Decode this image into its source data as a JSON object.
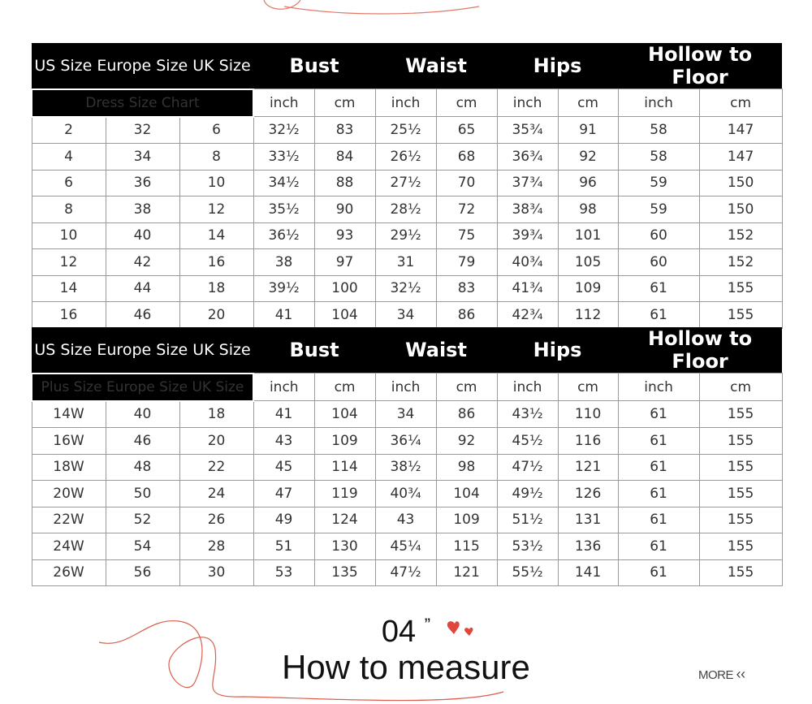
{
  "table1": {
    "header": [
      "US Size Europe Size UK Size",
      "Bust",
      "Waist",
      "Hips",
      "Hollow to Floor"
    ],
    "label": "Dress Size Chart",
    "units": [
      "inch",
      "cm",
      "inch",
      "cm",
      "inch",
      "cm",
      "inch",
      "cm"
    ],
    "rows": [
      [
        "2",
        "32",
        "6",
        "32½",
        "83",
        "25½",
        "65",
        "35¾",
        "91",
        "58",
        "147"
      ],
      [
        "4",
        "34",
        "8",
        "33½",
        "84",
        "26½",
        "68",
        "36¾",
        "92",
        "58",
        "147"
      ],
      [
        "6",
        "36",
        "10",
        "34½",
        "88",
        "27½",
        "70",
        "37¾",
        "96",
        "59",
        "150"
      ],
      [
        "8",
        "38",
        "12",
        "35½",
        "90",
        "28½",
        "72",
        "38¾",
        "98",
        "59",
        "150"
      ],
      [
        "10",
        "40",
        "14",
        "36½",
        "93",
        "29½",
        "75",
        "39¾",
        "101",
        "60",
        "152"
      ],
      [
        "12",
        "42",
        "16",
        "38",
        "97",
        "31",
        "79",
        "40¾",
        "105",
        "60",
        "152"
      ],
      [
        "14",
        "44",
        "18",
        "39½",
        "100",
        "32½",
        "83",
        "41¾",
        "109",
        "61",
        "155"
      ],
      [
        "16",
        "46",
        "20",
        "41",
        "104",
        "34",
        "86",
        "42¾",
        "112",
        "61",
        "155"
      ]
    ]
  },
  "table2": {
    "header": [
      "US Size Europe Size UK Size",
      "Bust",
      "Waist",
      "Hips",
      "Hollow to Floor"
    ],
    "label": "Plus Size Europe Size UK Size",
    "units": [
      "inch",
      "cm",
      "inch",
      "cm",
      "inch",
      "cm",
      "inch",
      "cm"
    ],
    "rows": [
      [
        "14W",
        "40",
        "18",
        "41",
        "104",
        "34",
        "86",
        "43½",
        "110",
        "61",
        "155"
      ],
      [
        "16W",
        "46",
        "20",
        "43",
        "109",
        "36¼",
        "92",
        "45½",
        "116",
        "61",
        "155"
      ],
      [
        "18W",
        "48",
        "22",
        "45",
        "114",
        "38½",
        "98",
        "47½",
        "121",
        "61",
        "155"
      ],
      [
        "20W",
        "50",
        "24",
        "47",
        "119",
        "40¾",
        "104",
        "49½",
        "126",
        "61",
        "155"
      ],
      [
        "22W",
        "52",
        "26",
        "49",
        "124",
        "43",
        "109",
        "51½",
        "131",
        "61",
        "155"
      ],
      [
        "24W",
        "54",
        "28",
        "51",
        "130",
        "45¼",
        "115",
        "53½",
        "136",
        "61",
        "155"
      ],
      [
        "26W",
        "56",
        "30",
        "53",
        "135",
        "47½",
        "121",
        "55½",
        "141",
        "61",
        "155"
      ]
    ]
  },
  "section": {
    "number": "04",
    "quote": "”",
    "title": "How to measure",
    "more": "MORE",
    "more_icon": "double-chevron-left-icon"
  },
  "colors": {
    "accent": "#e0473a",
    "header_bg": "#000000"
  }
}
